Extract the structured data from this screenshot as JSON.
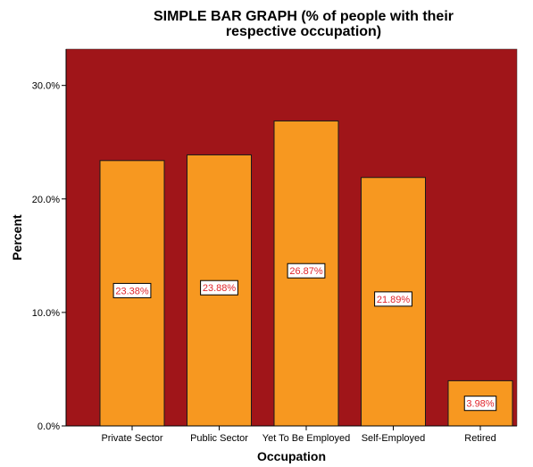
{
  "chart_data": {
    "type": "bar",
    "title": "SIMPLE BAR GRAPH (% of people with their\nrespective occupation)",
    "xlabel": "Occupation",
    "ylabel": "Percent",
    "categories": [
      "Private Sector",
      "Public Sector",
      "Yet To Be Employed",
      "Self-Employed",
      "Retired"
    ],
    "values": [
      23.38,
      23.88,
      26.87,
      21.89,
      3.98
    ],
    "data_labels": [
      "23.38%",
      "23.88%",
      "26.87%",
      "21.89%",
      "3.98%"
    ],
    "yticks": [
      0,
      10,
      20,
      30
    ],
    "ytick_labels": [
      "0.0%",
      "10.0%",
      "20.0%",
      "30.0%"
    ],
    "ylim": [
      0,
      33.2
    ],
    "grid": false,
    "legend": "none",
    "colors": {
      "plot_background": "#a01519",
      "bar_fill": "#f79820",
      "bar_stroke": "#1a1a1a",
      "label_text": "#e0252b"
    }
  }
}
